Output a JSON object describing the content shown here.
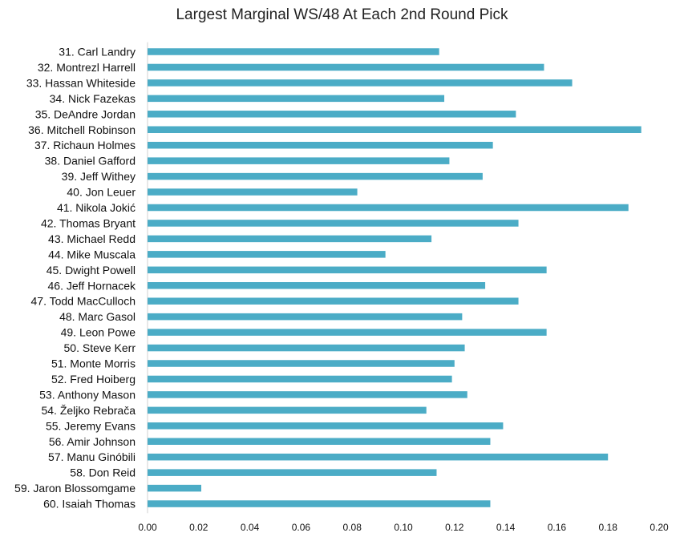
{
  "chart_data": {
    "type": "bar",
    "orientation": "horizontal",
    "title": "Largest Marginal WS/48 At Each 2nd Round Pick",
    "xlabel": "",
    "ylabel": "",
    "xlim": [
      0,
      0.2
    ],
    "xticks": [
      "0.00",
      "0.02",
      "0.04",
      "0.06",
      "0.08",
      "0.10",
      "0.12",
      "0.14",
      "0.16",
      "0.18",
      "0.20"
    ],
    "grid": false,
    "bar_color": "#4BACC6",
    "categories": [
      "31. Carl Landry",
      "32. Montrezl Harrell",
      "33. Hassan Whiteside",
      "34. Nick Fazekas",
      "35. DeAndre Jordan",
      "36. Mitchell Robinson",
      "37. Richaun Holmes",
      "38. Daniel Gafford",
      "39. Jeff Withey",
      "40. Jon Leuer",
      "41. Nikola Jokić",
      "42. Thomas Bryant",
      "43. Michael Redd",
      "44. Mike Muscala",
      "45. Dwight Powell",
      "46. Jeff Hornacek",
      "47. Todd MacCulloch",
      "48. Marc Gasol",
      "49. Leon Powe",
      "50. Steve Kerr",
      "51. Monte Morris",
      "52. Fred Hoiberg",
      "53. Anthony Mason",
      "54. Željko Rebrača",
      "55. Jeremy Evans",
      "56. Amir Johnson",
      "57. Manu Ginóbili",
      "58. Don Reid",
      "59. Jaron Blossomgame",
      "60. Isaiah Thomas"
    ],
    "values": [
      0.114,
      0.155,
      0.166,
      0.116,
      0.144,
      0.193,
      0.135,
      0.118,
      0.131,
      0.082,
      0.188,
      0.145,
      0.111,
      0.093,
      0.156,
      0.132,
      0.145,
      0.123,
      0.156,
      0.124,
      0.12,
      0.119,
      0.125,
      0.109,
      0.139,
      0.134,
      0.18,
      0.113,
      0.021,
      0.134
    ]
  }
}
